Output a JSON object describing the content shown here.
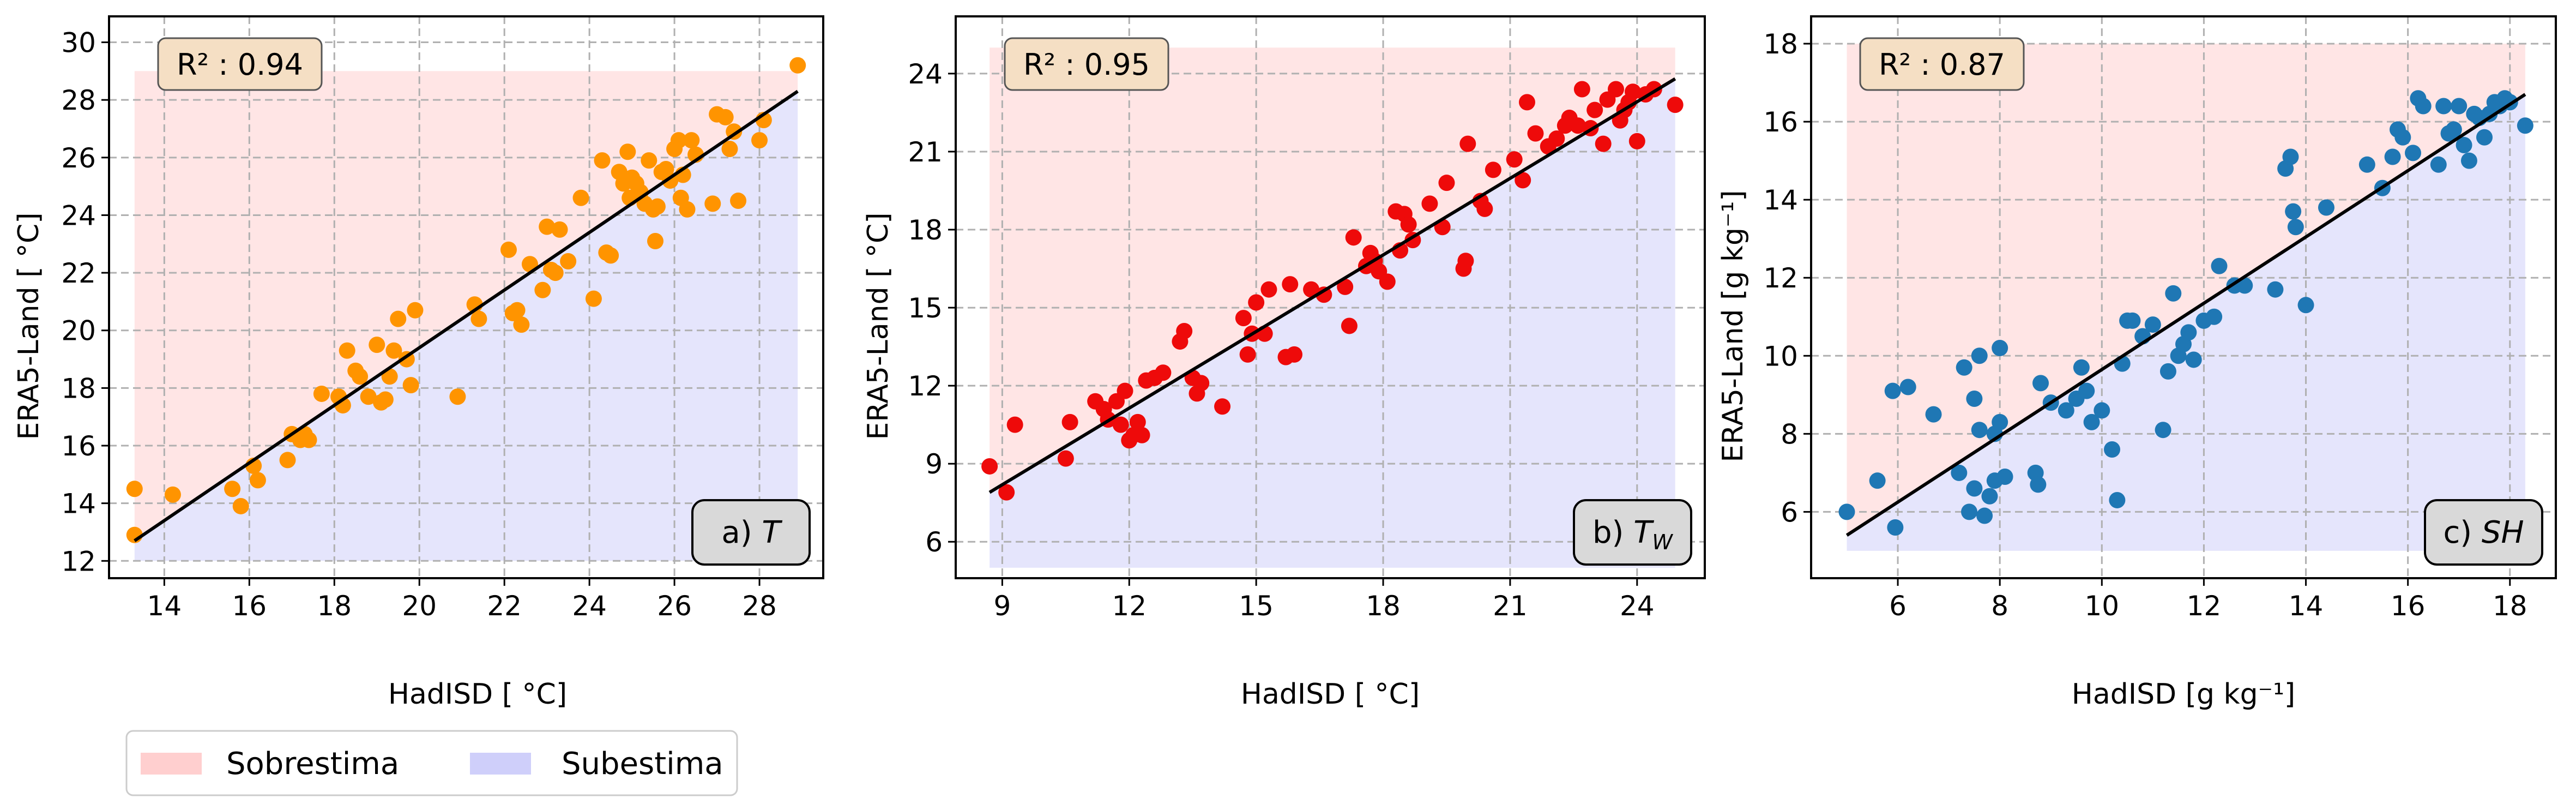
{
  "chart_data": [
    {
      "type": "scatter",
      "panel_label": "a) ",
      "panel_symbol": "T",
      "panel_sub": "",
      "xlabel": "HadISD [ °C]",
      "ylabel": "ERA5-Land [ °C]",
      "r2": "R² : 0.94",
      "xlim": [
        12.7,
        29.5
      ],
      "ylim": [
        11.4,
        30.9
      ],
      "xticks": [
        14,
        16,
        18,
        20,
        22,
        24,
        26,
        28
      ],
      "yticks": [
        12,
        14,
        16,
        18,
        20,
        22,
        24,
        26,
        28,
        30
      ],
      "band": [
        13.3,
        28.9,
        12,
        29
      ],
      "fit": {
        "x": [
          13.3,
          28.9
        ],
        "y": [
          12.7,
          28.3
        ]
      },
      "color": "#ff9400",
      "points": [
        [
          13.3,
          14.5
        ],
        [
          13.3,
          12.9
        ],
        [
          14.2,
          14.3
        ],
        [
          15.6,
          14.5
        ],
        [
          15.8,
          13.9
        ],
        [
          16.1,
          15.3
        ],
        [
          16.2,
          14.8
        ],
        [
          16.9,
          15.5
        ],
        [
          17.0,
          16.4
        ],
        [
          17.2,
          16.2
        ],
        [
          17.3,
          16.4
        ],
        [
          17.4,
          16.2
        ],
        [
          17.7,
          17.8
        ],
        [
          18.1,
          17.7
        ],
        [
          18.2,
          17.4
        ],
        [
          18.3,
          19.3
        ],
        [
          18.5,
          18.6
        ],
        [
          18.6,
          18.4
        ],
        [
          18.8,
          17.7
        ],
        [
          19.0,
          19.5
        ],
        [
          19.1,
          17.5
        ],
        [
          19.2,
          17.6
        ],
        [
          19.3,
          18.4
        ],
        [
          19.4,
          19.3
        ],
        [
          19.5,
          20.4
        ],
        [
          19.7,
          19.0
        ],
        [
          19.8,
          18.1
        ],
        [
          19.9,
          20.7
        ],
        [
          20.9,
          17.7
        ],
        [
          21.3,
          20.9
        ],
        [
          21.4,
          20.4
        ],
        [
          22.1,
          22.8
        ],
        [
          22.2,
          20.6
        ],
        [
          22.3,
          20.7
        ],
        [
          22.4,
          20.2
        ],
        [
          22.6,
          22.3
        ],
        [
          22.9,
          21.4
        ],
        [
          23.0,
          23.6
        ],
        [
          23.1,
          22.1
        ],
        [
          23.2,
          22.0
        ],
        [
          23.3,
          23.5
        ],
        [
          23.5,
          22.4
        ],
        [
          23.8,
          24.6
        ],
        [
          24.1,
          21.1
        ],
        [
          24.3,
          25.9
        ],
        [
          24.4,
          22.7
        ],
        [
          24.5,
          22.6
        ],
        [
          24.7,
          25.5
        ],
        [
          24.8,
          25.1
        ],
        [
          24.9,
          26.2
        ],
        [
          24.95,
          24.6
        ],
        [
          25.0,
          25.3
        ],
        [
          25.1,
          25.1
        ],
        [
          25.2,
          24.8
        ],
        [
          25.3,
          24.4
        ],
        [
          25.4,
          25.9
        ],
        [
          25.5,
          24.2
        ],
        [
          25.55,
          23.1
        ],
        [
          25.6,
          24.3
        ],
        [
          25.7,
          25.5
        ],
        [
          25.8,
          25.6
        ],
        [
          25.9,
          25.2
        ],
        [
          26.0,
          26.3
        ],
        [
          26.1,
          26.6
        ],
        [
          26.15,
          24.6
        ],
        [
          26.2,
          25.4
        ],
        [
          26.3,
          24.2
        ],
        [
          26.4,
          26.6
        ],
        [
          26.5,
          26.1
        ],
        [
          26.9,
          24.4
        ],
        [
          27.0,
          27.5
        ],
        [
          27.2,
          27.4
        ],
        [
          27.3,
          26.3
        ],
        [
          27.4,
          26.9
        ],
        [
          27.5,
          24.5
        ],
        [
          28.0,
          26.6
        ],
        [
          28.1,
          27.3
        ],
        [
          28.9,
          29.2
        ]
      ]
    },
    {
      "type": "scatter",
      "panel_label": "b) ",
      "panel_symbol": "T",
      "panel_sub": "W",
      "xlabel": "HadISD [ °C]",
      "ylabel": "ERA5-Land [ °C]",
      "r2": "R² : 0.95",
      "xlim": [
        7.9,
        25.6
      ],
      "ylim": [
        4.6,
        26.2
      ],
      "xticks": [
        9,
        12,
        15,
        18,
        21,
        24
      ],
      "yticks": [
        6,
        9,
        12,
        15,
        18,
        21,
        24
      ],
      "band": [
        8.7,
        24.9,
        5,
        25
      ],
      "fit": {
        "x": [
          8.7,
          24.9
        ],
        "y": [
          7.9,
          23.8
        ]
      },
      "color": "#ee0a0a",
      "points": [
        [
          8.7,
          8.9
        ],
        [
          9.1,
          7.9
        ],
        [
          9.3,
          10.5
        ],
        [
          10.5,
          9.2
        ],
        [
          10.6,
          10.6
        ],
        [
          11.2,
          11.4
        ],
        [
          11.4,
          11.1
        ],
        [
          11.5,
          10.7
        ],
        [
          11.7,
          11.4
        ],
        [
          11.8,
          10.5
        ],
        [
          11.9,
          11.8
        ],
        [
          12.0,
          9.9
        ],
        [
          12.1,
          10.1
        ],
        [
          12.2,
          10.6
        ],
        [
          12.3,
          10.1
        ],
        [
          12.4,
          12.2
        ],
        [
          12.6,
          12.3
        ],
        [
          12.8,
          12.5
        ],
        [
          13.2,
          13.7
        ],
        [
          13.3,
          14.1
        ],
        [
          13.5,
          12.3
        ],
        [
          13.6,
          11.7
        ],
        [
          13.7,
          12.1
        ],
        [
          14.2,
          11.2
        ],
        [
          14.7,
          14.6
        ],
        [
          14.8,
          13.2
        ],
        [
          14.9,
          14.0
        ],
        [
          15.0,
          15.2
        ],
        [
          15.2,
          14.0
        ],
        [
          15.3,
          15.7
        ],
        [
          15.7,
          13.1
        ],
        [
          15.8,
          15.9
        ],
        [
          15.9,
          13.2
        ],
        [
          16.3,
          15.7
        ],
        [
          16.6,
          15.5
        ],
        [
          17.1,
          15.8
        ],
        [
          17.2,
          14.3
        ],
        [
          17.3,
          17.7
        ],
        [
          17.6,
          16.6
        ],
        [
          17.7,
          17.1
        ],
        [
          17.8,
          16.8
        ],
        [
          17.9,
          16.4
        ],
        [
          18.1,
          16.0
        ],
        [
          18.3,
          18.7
        ],
        [
          18.4,
          17.2
        ],
        [
          18.5,
          18.6
        ],
        [
          18.6,
          18.2
        ],
        [
          18.7,
          17.6
        ],
        [
          19.1,
          19.0
        ],
        [
          19.4,
          18.1
        ],
        [
          19.5,
          19.8
        ],
        [
          19.9,
          16.5
        ],
        [
          19.95,
          16.8
        ],
        [
          20.0,
          21.3
        ],
        [
          20.3,
          19.1
        ],
        [
          20.4,
          18.8
        ],
        [
          20.6,
          20.3
        ],
        [
          21.1,
          20.7
        ],
        [
          21.3,
          19.9
        ],
        [
          21.4,
          22.9
        ],
        [
          21.6,
          21.7
        ],
        [
          21.9,
          21.2
        ],
        [
          22.1,
          21.5
        ],
        [
          22.3,
          22.0
        ],
        [
          22.4,
          22.3
        ],
        [
          22.6,
          22.0
        ],
        [
          22.7,
          23.4
        ],
        [
          22.9,
          21.9
        ],
        [
          23.0,
          22.6
        ],
        [
          23.2,
          21.3
        ],
        [
          23.3,
          23.0
        ],
        [
          23.5,
          23.4
        ],
        [
          23.6,
          22.2
        ],
        [
          23.7,
          22.6
        ],
        [
          23.8,
          22.9
        ],
        [
          23.9,
          23.3
        ],
        [
          24.0,
          21.4
        ],
        [
          24.2,
          23.2
        ],
        [
          24.4,
          23.4
        ],
        [
          24.9,
          22.8
        ]
      ]
    },
    {
      "type": "scatter",
      "panel_label": "c) ",
      "panel_symbol": "SH",
      "panel_sub": "",
      "xlabel": "HadISD [g kg⁻¹]",
      "ylabel": "ERA5-Land [g kg⁻¹]",
      "r2": "R² : 0.87",
      "xlim": [
        4.3,
        18.9
      ],
      "ylim": [
        4.3,
        18.7
      ],
      "xticks": [
        6,
        8,
        10,
        12,
        14,
        16,
        18
      ],
      "yticks": [
        6,
        8,
        10,
        12,
        14,
        16,
        18
      ],
      "band": [
        5.0,
        18.3,
        5,
        18
      ],
      "fit": {
        "x": [
          5.0,
          18.3
        ],
        "y": [
          5.4,
          16.7
        ]
      },
      "color": "#1f77b4",
      "points": [
        [
          5.0,
          6.0
        ],
        [
          5.6,
          6.8
        ],
        [
          5.9,
          9.1
        ],
        [
          5.95,
          5.6
        ],
        [
          6.2,
          9.2
        ],
        [
          6.7,
          8.5
        ],
        [
          7.2,
          7.0
        ],
        [
          7.3,
          9.7
        ],
        [
          7.4,
          6.0
        ],
        [
          7.5,
          6.6
        ],
        [
          7.5,
          8.9
        ],
        [
          7.6,
          10.0
        ],
        [
          7.6,
          8.1
        ],
        [
          7.7,
          5.9
        ],
        [
          7.8,
          6.4
        ],
        [
          7.9,
          8.0
        ],
        [
          7.9,
          6.8
        ],
        [
          8.0,
          10.2
        ],
        [
          8.0,
          8.3
        ],
        [
          8.1,
          6.9
        ],
        [
          8.7,
          7.0
        ],
        [
          8.75,
          6.7
        ],
        [
          8.8,
          9.3
        ],
        [
          9.0,
          8.8
        ],
        [
          9.3,
          8.6
        ],
        [
          9.5,
          8.9
        ],
        [
          9.6,
          9.7
        ],
        [
          9.7,
          9.1
        ],
        [
          9.8,
          8.3
        ],
        [
          10.0,
          8.6
        ],
        [
          10.2,
          7.6
        ],
        [
          10.3,
          6.3
        ],
        [
          10.4,
          9.8
        ],
        [
          10.5,
          10.9
        ],
        [
          10.6,
          10.9
        ],
        [
          10.8,
          10.5
        ],
        [
          11.0,
          10.8
        ],
        [
          11.2,
          8.1
        ],
        [
          11.3,
          9.6
        ],
        [
          11.4,
          11.6
        ],
        [
          11.5,
          10.0
        ],
        [
          11.6,
          10.3
        ],
        [
          11.7,
          10.6
        ],
        [
          11.8,
          9.9
        ],
        [
          12.0,
          10.9
        ],
        [
          12.2,
          11.0
        ],
        [
          12.3,
          12.3
        ],
        [
          12.6,
          11.8
        ],
        [
          12.8,
          11.8
        ],
        [
          13.4,
          11.7
        ],
        [
          13.6,
          14.8
        ],
        [
          13.7,
          15.1
        ],
        [
          13.75,
          13.7
        ],
        [
          13.8,
          13.3
        ],
        [
          14.0,
          11.3
        ],
        [
          14.4,
          13.8
        ],
        [
          15.2,
          14.9
        ],
        [
          15.5,
          14.3
        ],
        [
          15.7,
          15.1
        ],
        [
          15.8,
          15.8
        ],
        [
          15.9,
          15.6
        ],
        [
          16.1,
          15.2
        ],
        [
          16.2,
          16.6
        ],
        [
          16.3,
          16.4
        ],
        [
          16.6,
          14.9
        ],
        [
          16.7,
          16.4
        ],
        [
          16.8,
          15.7
        ],
        [
          16.9,
          15.8
        ],
        [
          17.0,
          16.4
        ],
        [
          17.1,
          15.4
        ],
        [
          17.2,
          15.0
        ],
        [
          17.3,
          16.2
        ],
        [
          17.4,
          16.1
        ],
        [
          17.5,
          15.6
        ],
        [
          17.6,
          16.2
        ],
        [
          17.7,
          16.5
        ],
        [
          17.8,
          16.4
        ],
        [
          17.9,
          16.6
        ],
        [
          18.0,
          16.5
        ],
        [
          18.3,
          15.9
        ]
      ]
    }
  ],
  "legend": {
    "items": [
      {
        "label": "Sobrestima",
        "color": "#ffcfcf"
      },
      {
        "label": "Subestima",
        "color": "#cfcffa"
      }
    ]
  }
}
